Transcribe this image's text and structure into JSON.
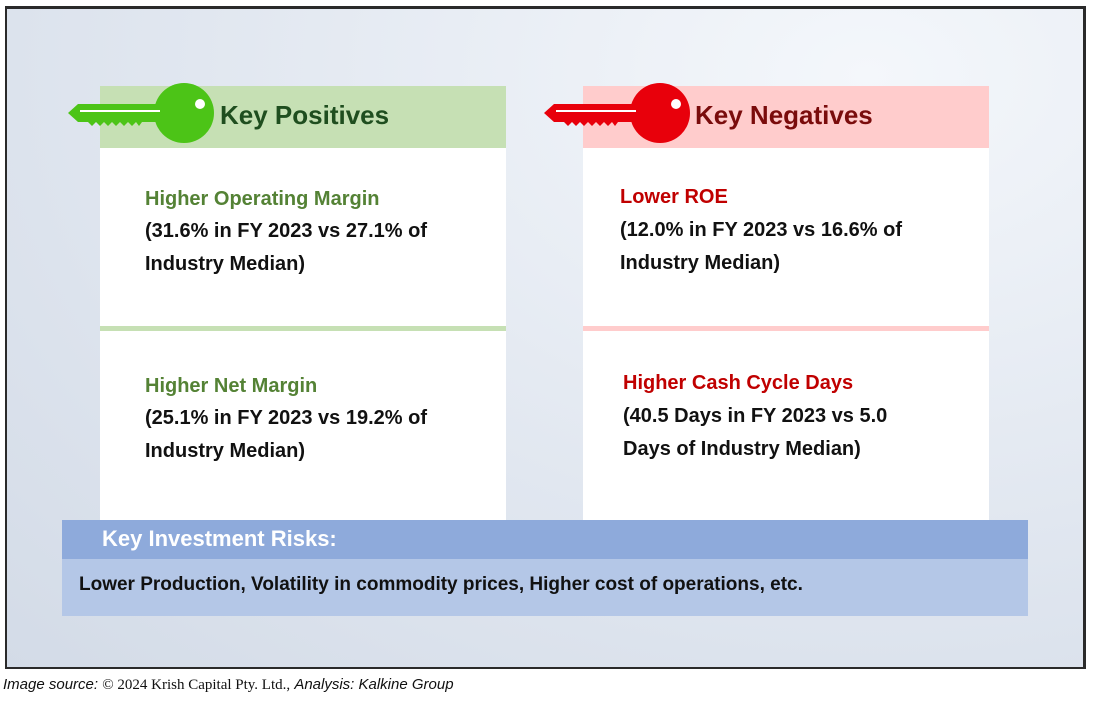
{
  "positives": {
    "heading": "Key Positives",
    "items": [
      {
        "title": "Higher Operating Margin",
        "detail_line1": "(31.6% in FY 2023 vs 27.1% of",
        "detail_line2": "Industry Median)"
      },
      {
        "title": "Higher Net Margin",
        "detail_line1": "(25.1% in FY 2023 vs 19.2% of",
        "detail_line2": "Industry Median)"
      }
    ]
  },
  "negatives": {
    "heading": "Key Negatives",
    "items": [
      {
        "title": "Lower ROE",
        "detail_line1": "(12.0% in FY 2023 vs 16.6% of",
        "detail_line2": "Industry Median)"
      },
      {
        "title": "Higher Cash Cycle Days",
        "detail_line1": "(40.5 Days in FY 2023 vs 5.0",
        "detail_line2": "Days of Industry Median)"
      }
    ]
  },
  "risks": {
    "heading": "Key Investment Risks:",
    "text": "Lower Production, Volatility in commodity prices, Higher cost of operations, etc."
  },
  "source": {
    "label": "Image source:",
    "copyright": "© 2024 Krish Capital Pty. Ltd.,",
    "analysis": "Analysis: Kalkine Group"
  },
  "colors": {
    "positive_key": "#4cc417",
    "negative_key": "#e8000b",
    "positive_header_bg": "#c6e0b4",
    "negative_header_bg": "#ffcccc",
    "risk_header_bg": "#8eaadb",
    "risk_body_bg": "#b4c7e7"
  },
  "icons": {
    "positives": "green-key-icon",
    "negatives": "red-key-icon"
  }
}
